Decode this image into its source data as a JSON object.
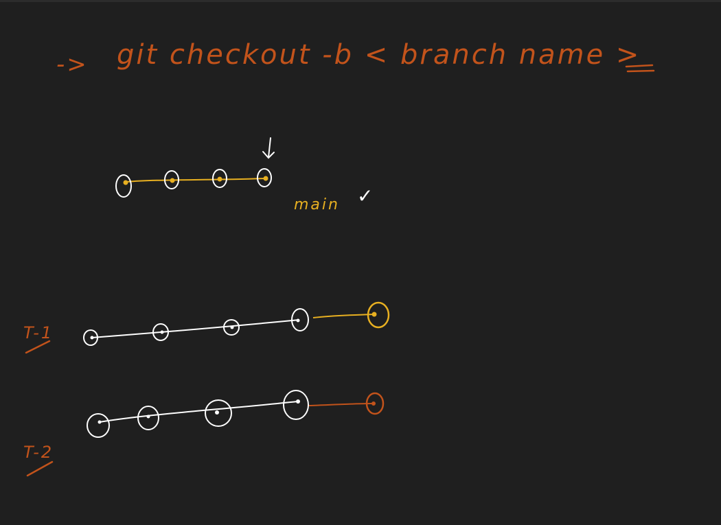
{
  "heading": {
    "arrow": "->",
    "command": "git checkout -b < branch name >"
  },
  "labels": {
    "main_branch": "main",
    "check_mark": "✓",
    "branch_t1": "T-1",
    "branch_t2": "T-2",
    "head_pointer": "↓"
  },
  "colors": {
    "background": "#1f1f1f",
    "orange": "#c2531b",
    "yellow": "#e8b021",
    "white": "#ffffff"
  },
  "diagram": {
    "main_line_commits": 4,
    "t1_line_commits": 4,
    "t1_new_commits": 1,
    "t2_line_commits": 4,
    "t2_new_commits": 1
  }
}
